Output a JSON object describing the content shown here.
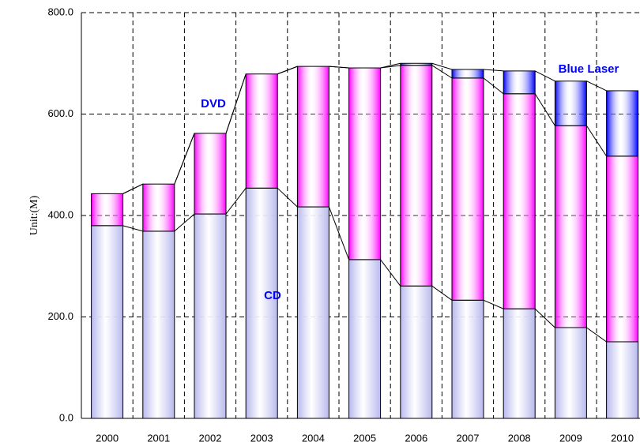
{
  "chart_data": {
    "type": "stacked_bar",
    "y_label": "Unit:(M)",
    "categories": [
      "2000",
      "2001",
      "2002",
      "2003",
      "2004",
      "2005",
      "2006",
      "2007",
      "2008",
      "2009",
      "2010"
    ],
    "series": [
      {
        "name": "CD",
        "color": "#b8b8ee",
        "values": [
          380,
          369,
          403,
          454,
          417,
          313,
          261,
          233,
          216,
          179,
          151
        ]
      },
      {
        "name": "DVD",
        "color": "#ff00ff",
        "values": [
          63,
          93,
          159,
          225,
          277,
          378,
          435,
          438,
          424,
          398,
          366
        ]
      },
      {
        "name": "Blue Laser",
        "color": "#0000ff",
        "values": [
          0,
          0,
          0,
          0,
          0,
          0,
          4,
          17,
          45,
          88,
          129
        ]
      }
    ],
    "ylim": [
      0,
      800
    ],
    "yticks": [
      {
        "value": 0,
        "label": "0.0"
      },
      {
        "value": 200,
        "label": "200.0"
      },
      {
        "value": 400,
        "label": "400.0"
      },
      {
        "value": 600,
        "label": "600.0"
      },
      {
        "value": 800,
        "label": "800.0"
      }
    ],
    "grid": true
  }
}
